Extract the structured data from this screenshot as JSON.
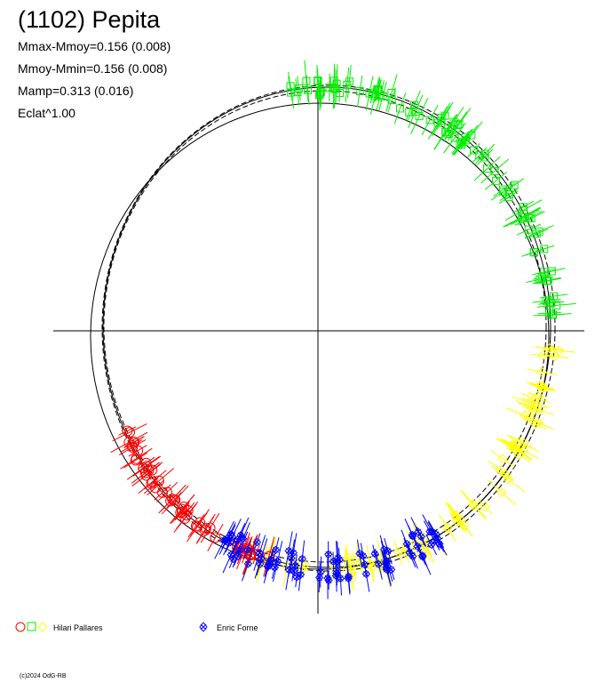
{
  "title": "(1102) Pepita",
  "stats": [
    "Mmax-Mmoy=0.156 (0.008)",
    "Mmoy-Mmin=0.156 (0.008)",
    "Mamp=0.313 (0.016)",
    "Eclat^1.00"
  ],
  "legend": {
    "observer1": "Hilari Pallares",
    "observer2": "Enric Forne"
  },
  "copyright": "(c)2024 OdG-RB",
  "colors": {
    "red": "#ff0000",
    "green": "#00ee00",
    "yellow": "#ffff00",
    "blue": "#0000ff",
    "axes": "#000000"
  },
  "chart_data": {
    "type": "scatter",
    "description_of_axes": "polar phase plot; angle = rotational phase, radius = brightness",
    "series": [
      {
        "name": "Hilari Pallares",
        "markers": [
          "circle",
          "square",
          "diamond"
        ],
        "colors": [
          "#ff0000",
          "#00ee00",
          "#ffff00"
        ]
      },
      {
        "name": "Enric Forne",
        "markers": [
          "star"
        ],
        "colors": [
          "#0000ff"
        ]
      }
    ],
    "grid": false,
    "legend_position": "bottom"
  }
}
